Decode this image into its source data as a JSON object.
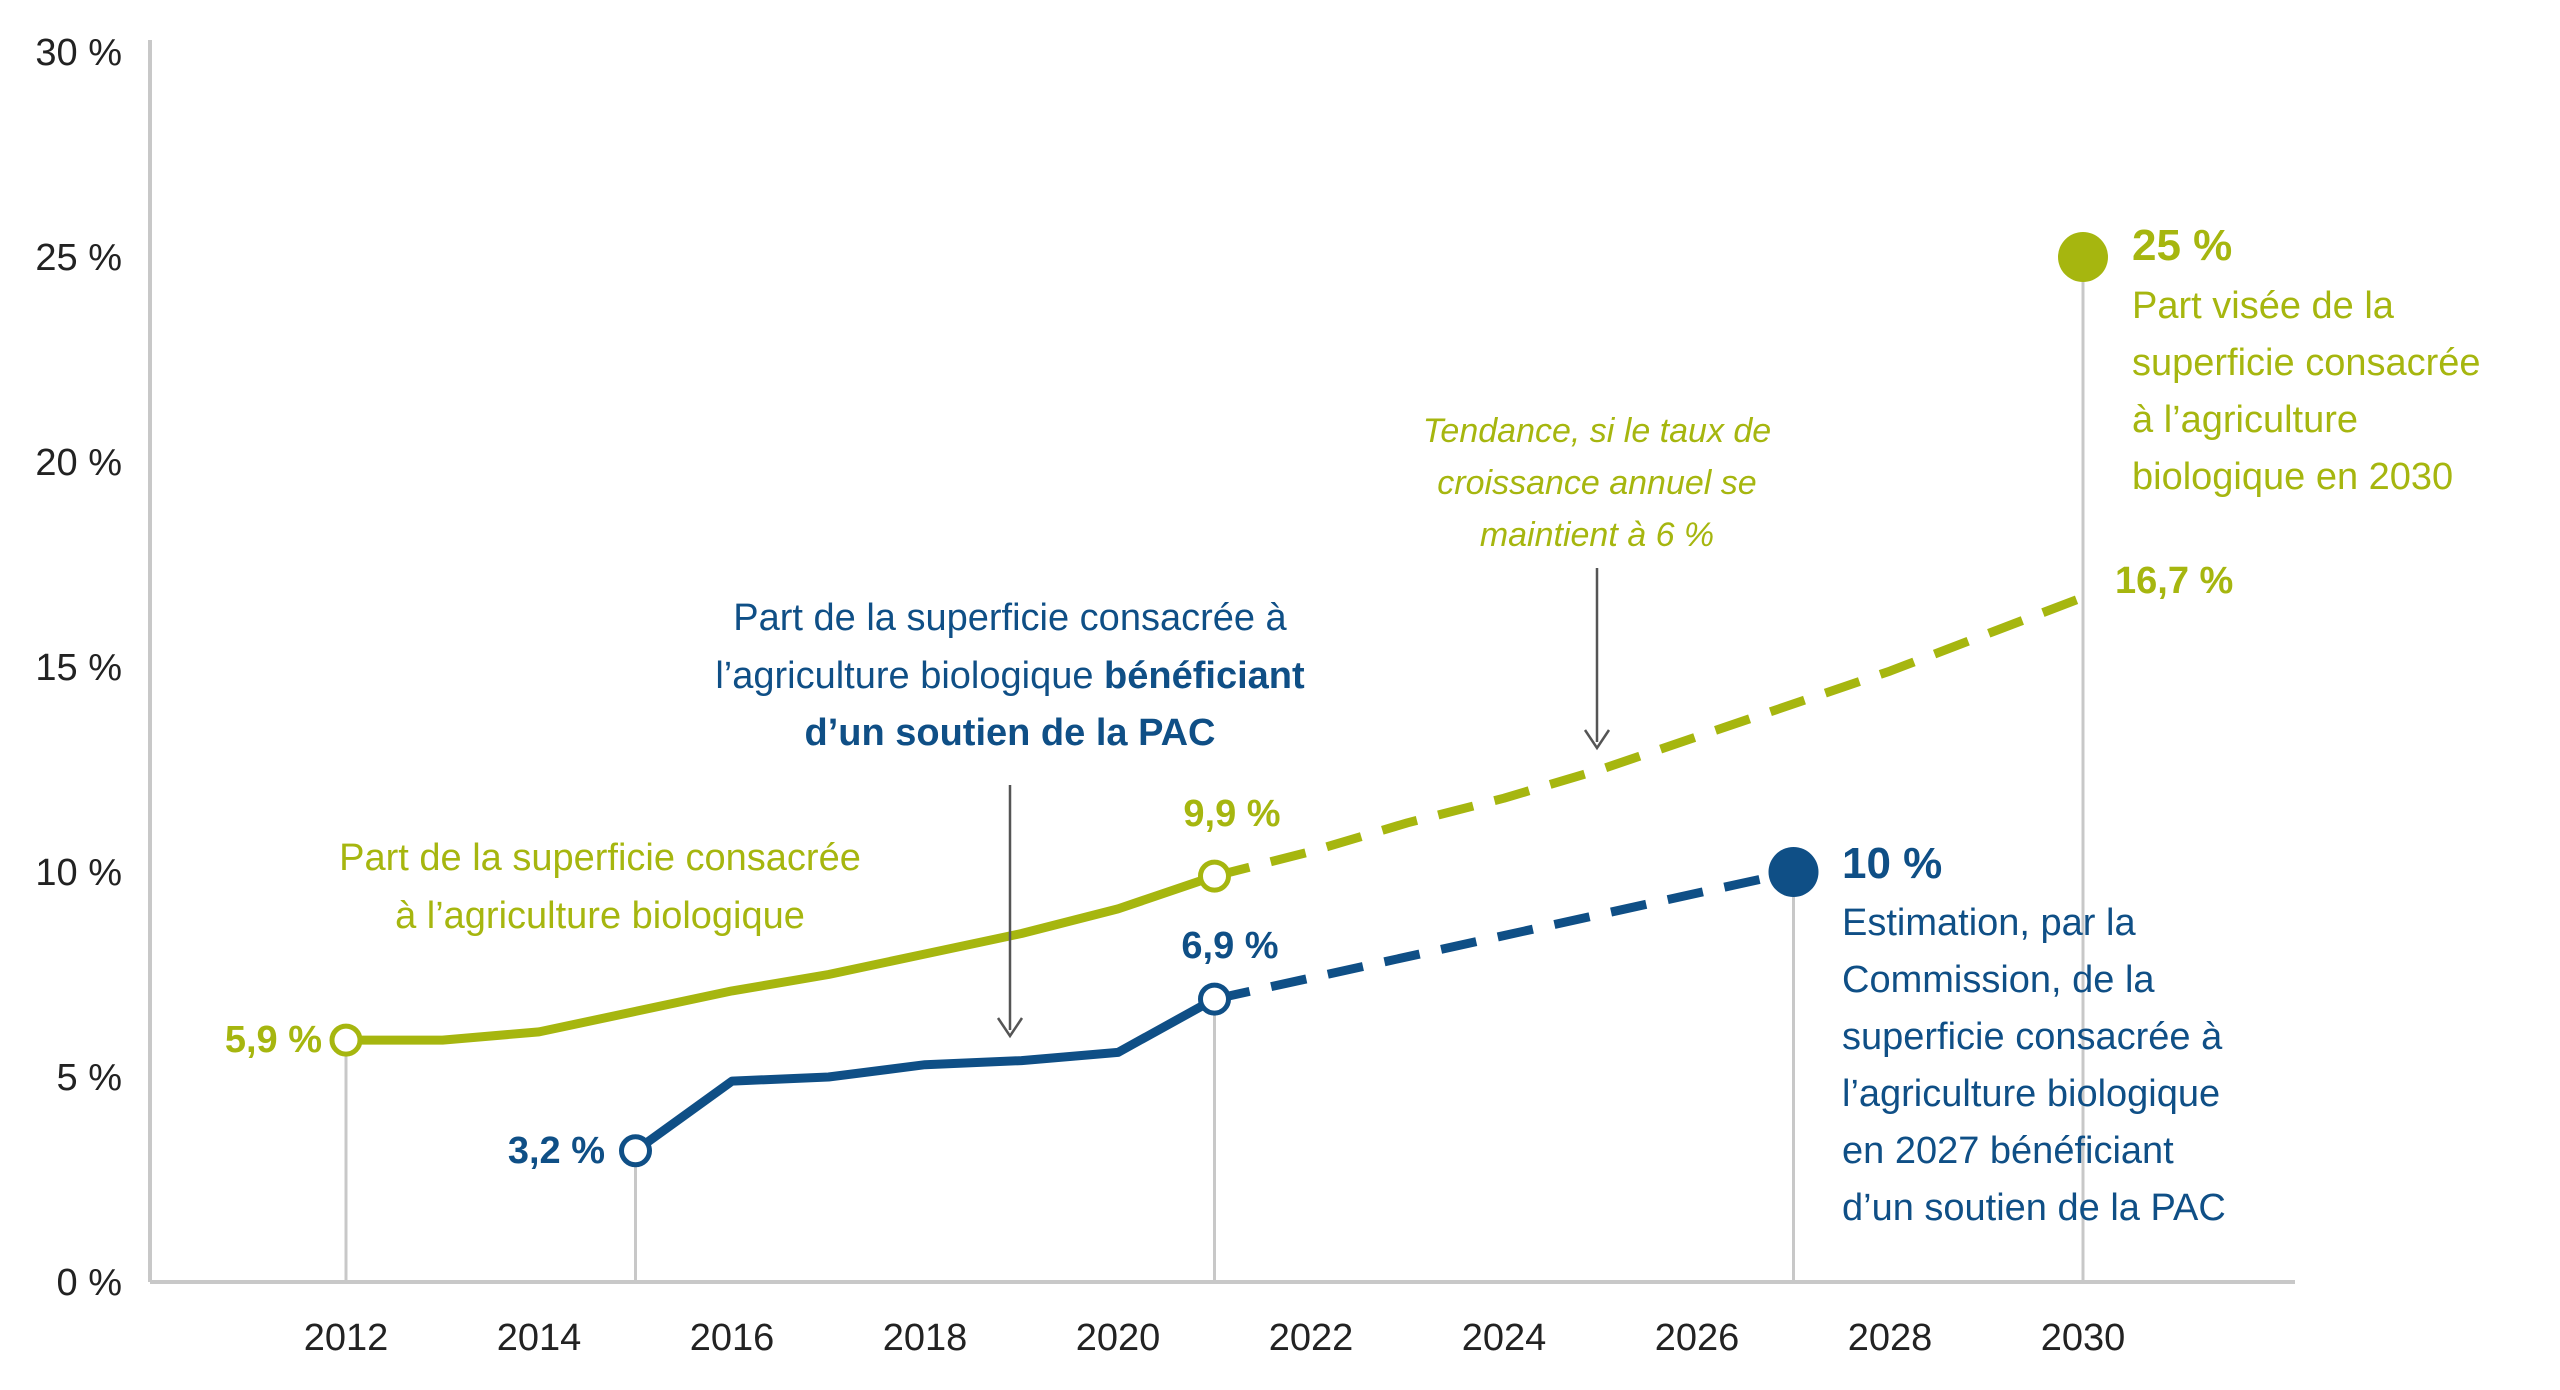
{
  "colors": {
    "olive": "#a6b60f",
    "navy": "#0f4f86",
    "axis": "#c8c8c8",
    "text": "#222222"
  },
  "chart_data": {
    "type": "line",
    "xlim": [
      2010,
      2032
    ],
    "ylim": [
      0,
      30
    ],
    "x_ticks": [
      2012,
      2014,
      2016,
      2018,
      2020,
      2022,
      2024,
      2026,
      2028,
      2030
    ],
    "x_tick_labels": [
      "2012",
      "2014",
      "2016",
      "2018",
      "2020",
      "2022",
      "2024",
      "2026",
      "2028",
      "2030"
    ],
    "y_ticks": [
      0,
      5,
      10,
      15,
      20,
      25,
      30
    ],
    "y_tick_labels": [
      "0 %",
      "5 %",
      "10 %",
      "15 %",
      "20 %",
      "25 %",
      "30 %"
    ],
    "grid": false,
    "series": [
      {
        "key": "organic",
        "color": "olive",
        "x": [
          2012,
          2013,
          2014,
          2015,
          2016,
          2017,
          2018,
          2019,
          2020,
          2021
        ],
        "y": [
          5.9,
          5.9,
          6.1,
          6.6,
          7.1,
          7.5,
          8.0,
          8.5,
          9.1,
          9.9
        ]
      },
      {
        "key": "organic-trend",
        "color": "olive",
        "dashed": true,
        "x": [
          2021,
          2022,
          2023,
          2024,
          2025,
          2026,
          2027,
          2028,
          2029,
          2030
        ],
        "y": [
          9.9,
          10.5,
          11.2,
          11.8,
          12.5,
          13.3,
          14.1,
          14.9,
          15.8,
          16.7
        ]
      },
      {
        "key": "cap-supported",
        "color": "navy",
        "x": [
          2015,
          2016,
          2017,
          2018,
          2019,
          2020,
          2021
        ],
        "y": [
          3.2,
          4.9,
          5.0,
          5.3,
          5.4,
          5.6,
          6.9
        ]
      },
      {
        "key": "cap-estimate",
        "color": "navy",
        "dashed": true,
        "x": [
          2021,
          2027
        ],
        "y": [
          6.9,
          10.0
        ]
      }
    ],
    "points": [
      {
        "key": "p2012",
        "x": 2012,
        "y": 5.9,
        "color": "olive",
        "hollow": true,
        "label": "5,9 %",
        "stem": true
      },
      {
        "key": "p2021o",
        "x": 2021,
        "y": 9.9,
        "color": "olive",
        "hollow": true,
        "label": "9,9 %",
        "stem": false
      },
      {
        "key": "p2015",
        "x": 2015,
        "y": 3.2,
        "color": "navy",
        "hollow": true,
        "label": "3,2 %",
        "stem": true
      },
      {
        "key": "p2021n",
        "x": 2021,
        "y": 6.9,
        "color": "navy",
        "hollow": true,
        "label": "6,9 %",
        "stem": true
      },
      {
        "key": "p2027",
        "x": 2027,
        "y": 10.0,
        "color": "navy",
        "hollow": false,
        "label": "10 %",
        "stem": true
      },
      {
        "key": "p2030t",
        "x": 2030,
        "y": 16.7,
        "color": "olive",
        "hollow": false,
        "label": "16,7 %",
        "stem": false
      },
      {
        "key": "p2030",
        "x": 2030,
        "y": 25.0,
        "color": "olive",
        "hollow": false,
        "label": "25 %",
        "stem": true
      }
    ],
    "annotations": {
      "organic_line_label": [
        "Part de la superficie consacrée",
        "à l’agriculture biologique"
      ],
      "cap_line_label_1": "Part de la superficie consacrée à",
      "cap_line_label_2_normal": "l’agriculture biologique",
      "cap_line_label_2_bold": "bénéficiant",
      "cap_line_label_3_bold": "d’un soutien de la PAC",
      "trend_note": [
        "Tendance, si le taux de",
        "croissance annuel se",
        "maintient à 6 %"
      ],
      "target_note": [
        "Part visée de la",
        "superficie consacrée",
        "à l’agriculture",
        "biologique en 2030"
      ],
      "estimate_note": [
        "Estimation, par la",
        "Commission, de la",
        "superficie consacrée à",
        "l’agriculture biologique",
        "en 2027 bénéficiant",
        "d’un soutien de la PAC"
      ]
    }
  }
}
